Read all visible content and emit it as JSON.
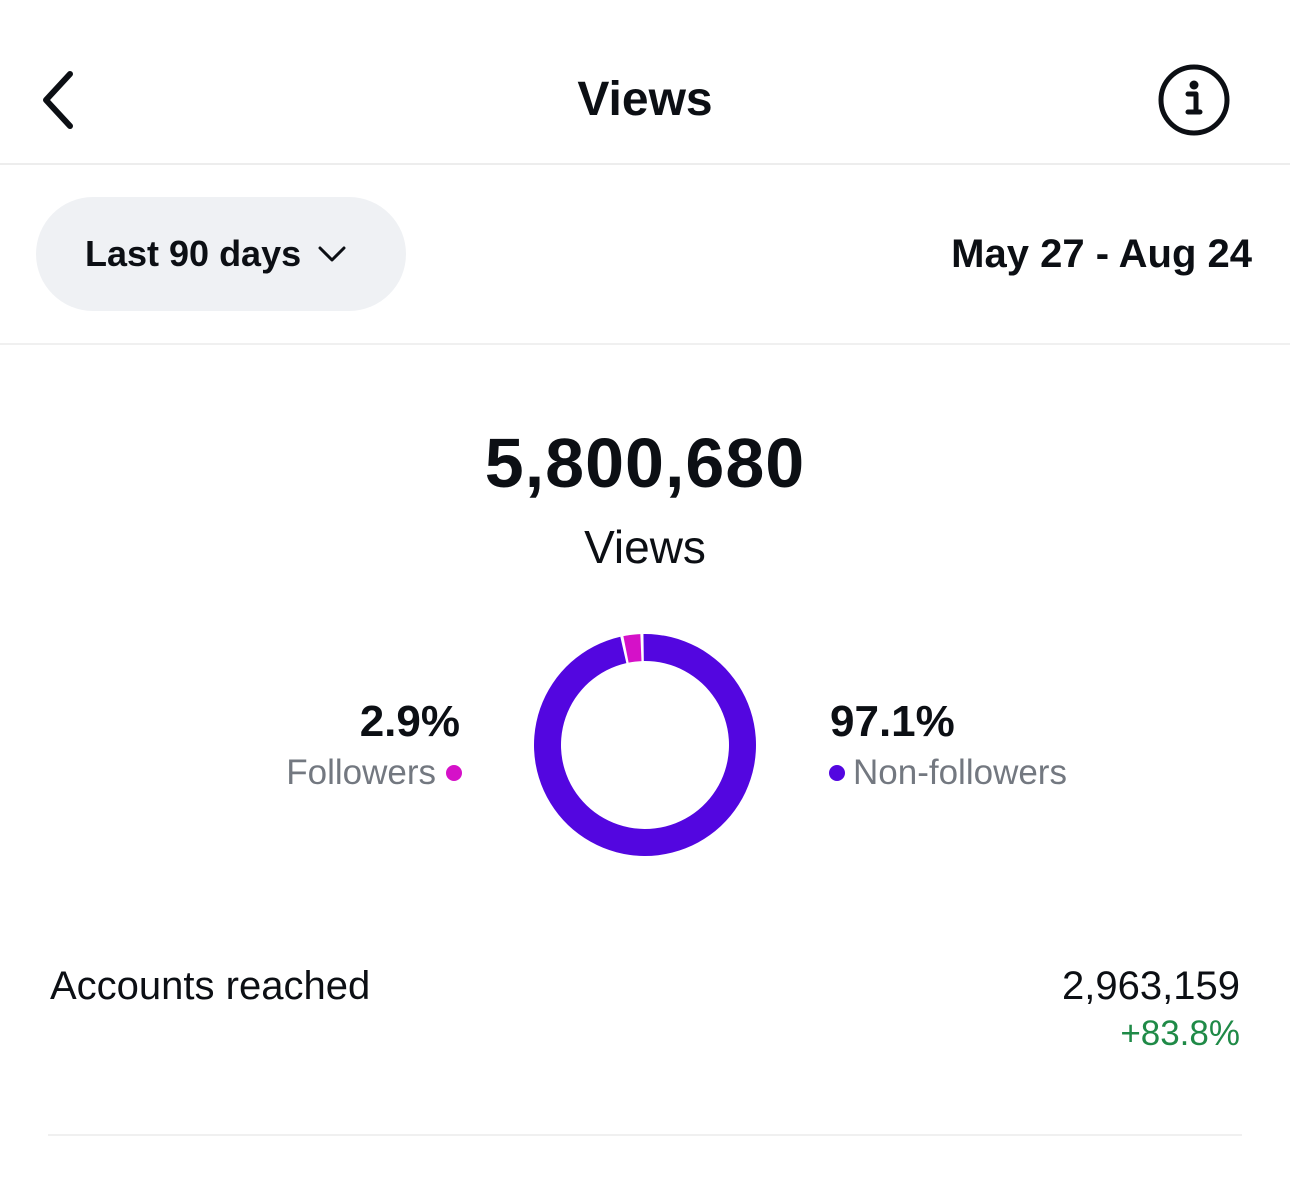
{
  "header": {
    "title": "Views",
    "back_icon": "chevron-left-icon",
    "info_icon": "info-circle-icon"
  },
  "filter": {
    "range_label": "Last 90 days",
    "dropdown_icon": "chevron-down-icon",
    "date_range": "May 27 - Aug 24"
  },
  "summary": {
    "total_value": "5,800,680",
    "total_label": "Views"
  },
  "breakdown": {
    "followers": {
      "percent": "2.9%",
      "label": "Followers",
      "color": "#d511c8"
    },
    "non_followers": {
      "percent": "97.1%",
      "label": "Non-followers",
      "color": "#5306e0"
    }
  },
  "chart_data": {
    "type": "pie",
    "categories": [
      "Followers",
      "Non-followers"
    ],
    "values": [
      2.9,
      97.1
    ],
    "colors": [
      "#d511c8",
      "#5306e0"
    ]
  },
  "metrics": {
    "accounts_reached": {
      "label": "Accounts reached",
      "value": "2,963,159",
      "change": "+83.8%",
      "change_color": "#1f8a47"
    }
  }
}
